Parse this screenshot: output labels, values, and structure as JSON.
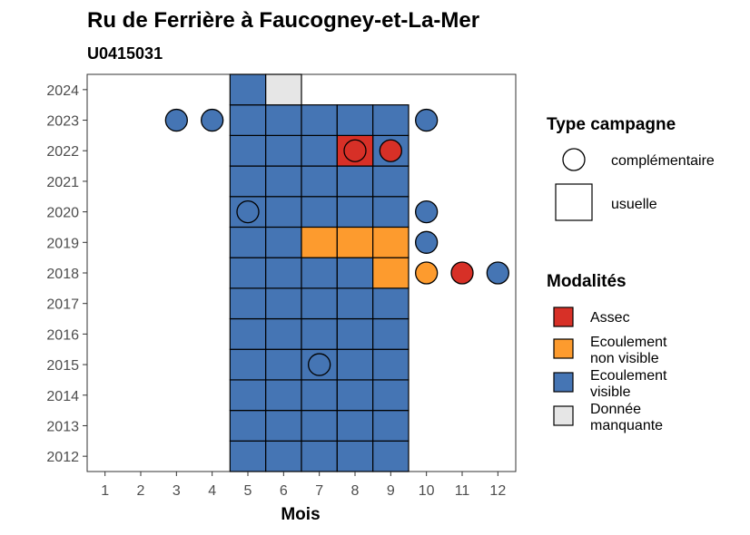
{
  "chart_data": {
    "type": "heatmap",
    "title": "Ru de Ferrière à Faucogney-et-La-Mer",
    "subtitle": "U0415031",
    "xlabel": "Mois",
    "ylabel": "",
    "x_ticks": [
      "1",
      "2",
      "3",
      "4",
      "5",
      "6",
      "7",
      "8",
      "9",
      "10",
      "11",
      "12"
    ],
    "y_ticks": [
      "2012",
      "2013",
      "2014",
      "2015",
      "2016",
      "2017",
      "2018",
      "2019",
      "2020",
      "2021",
      "2022",
      "2023",
      "2024"
    ],
    "xlim": [
      0.5,
      12.5
    ],
    "ylim": [
      2011.5,
      2024.5
    ],
    "grid": false,
    "colors": {
      "Assec": "#d73027",
      "Ecoulement non visible": "#fd9b2e",
      "Ecoulement visible": "#4575b4",
      "Donnée manquante": "#e6e6e6"
    },
    "usuelle": [
      {
        "year": 2012,
        "months": [
          5,
          6,
          7,
          8,
          9
        ],
        "modalite": "Ecoulement visible"
      },
      {
        "year": 2013,
        "months": [
          5,
          6,
          7,
          8,
          9
        ],
        "modalite": "Ecoulement visible"
      },
      {
        "year": 2014,
        "months": [
          5,
          6,
          7,
          8,
          9
        ],
        "modalite": "Ecoulement visible"
      },
      {
        "year": 2015,
        "months": [
          5,
          6,
          7,
          8,
          9
        ],
        "modalite": "Ecoulement visible"
      },
      {
        "year": 2016,
        "months": [
          5,
          6,
          7,
          8,
          9
        ],
        "modalite": "Ecoulement visible"
      },
      {
        "year": 2017,
        "months": [
          5,
          6,
          7,
          8,
          9
        ],
        "modalite": "Ecoulement visible"
      },
      {
        "year": 2018,
        "months": [
          5,
          6,
          7,
          8
        ],
        "modalite": "Ecoulement visible"
      },
      {
        "year": 2018,
        "months": [
          9
        ],
        "modalite": "Ecoulement non visible"
      },
      {
        "year": 2019,
        "months": [
          5,
          6
        ],
        "modalite": "Ecoulement visible"
      },
      {
        "year": 2019,
        "months": [
          7,
          8,
          9
        ],
        "modalite": "Ecoulement non visible"
      },
      {
        "year": 2020,
        "months": [
          5,
          6,
          7,
          8,
          9
        ],
        "modalite": "Ecoulement visible"
      },
      {
        "year": 2021,
        "months": [
          5,
          6,
          7,
          8,
          9
        ],
        "modalite": "Ecoulement visible"
      },
      {
        "year": 2022,
        "months": [
          5,
          6,
          7,
          9
        ],
        "modalite": "Ecoulement visible"
      },
      {
        "year": 2022,
        "months": [
          8
        ],
        "modalite": "Assec"
      },
      {
        "year": 2023,
        "months": [
          5,
          6,
          7,
          8,
          9
        ],
        "modalite": "Ecoulement visible"
      },
      {
        "year": 2024,
        "months": [
          5
        ],
        "modalite": "Ecoulement visible"
      },
      {
        "year": 2024,
        "months": [
          6
        ],
        "modalite": "Donnée manquante"
      }
    ],
    "complementaire": [
      {
        "year": 2023,
        "month": 3,
        "modalite": "Ecoulement visible"
      },
      {
        "year": 2023,
        "month": 4,
        "modalite": "Ecoulement visible"
      },
      {
        "year": 2023,
        "month": 10,
        "modalite": "Ecoulement visible"
      },
      {
        "year": 2022,
        "month": 8,
        "modalite": "Assec"
      },
      {
        "year": 2022,
        "month": 9,
        "modalite": "Assec"
      },
      {
        "year": 2020,
        "month": 5,
        "modalite": "Ecoulement visible"
      },
      {
        "year": 2020,
        "month": 10,
        "modalite": "Ecoulement visible"
      },
      {
        "year": 2019,
        "month": 10,
        "modalite": "Ecoulement visible"
      },
      {
        "year": 2018,
        "month": 10,
        "modalite": "Ecoulement non visible"
      },
      {
        "year": 2018,
        "month": 11,
        "modalite": "Assec"
      },
      {
        "year": 2018,
        "month": 12,
        "modalite": "Ecoulement visible"
      },
      {
        "year": 2015,
        "month": 7,
        "modalite": "Ecoulement visible"
      }
    ],
    "legend": {
      "placement": "right",
      "type_title": "Type campagne",
      "type_items": [
        "complémentaire",
        "usuelle"
      ],
      "modalites_title": "Modalités",
      "modalites_items": [
        {
          "label_lines": [
            "Assec"
          ],
          "key": "Assec"
        },
        {
          "label_lines": [
            "Ecoulement",
            "non visible"
          ],
          "key": "Ecoulement non visible"
        },
        {
          "label_lines": [
            "Ecoulement",
            "visible"
          ],
          "key": "Ecoulement visible"
        },
        {
          "label_lines": [
            "Donnée",
            "manquante"
          ],
          "key": "Donnée manquante"
        }
      ]
    }
  }
}
